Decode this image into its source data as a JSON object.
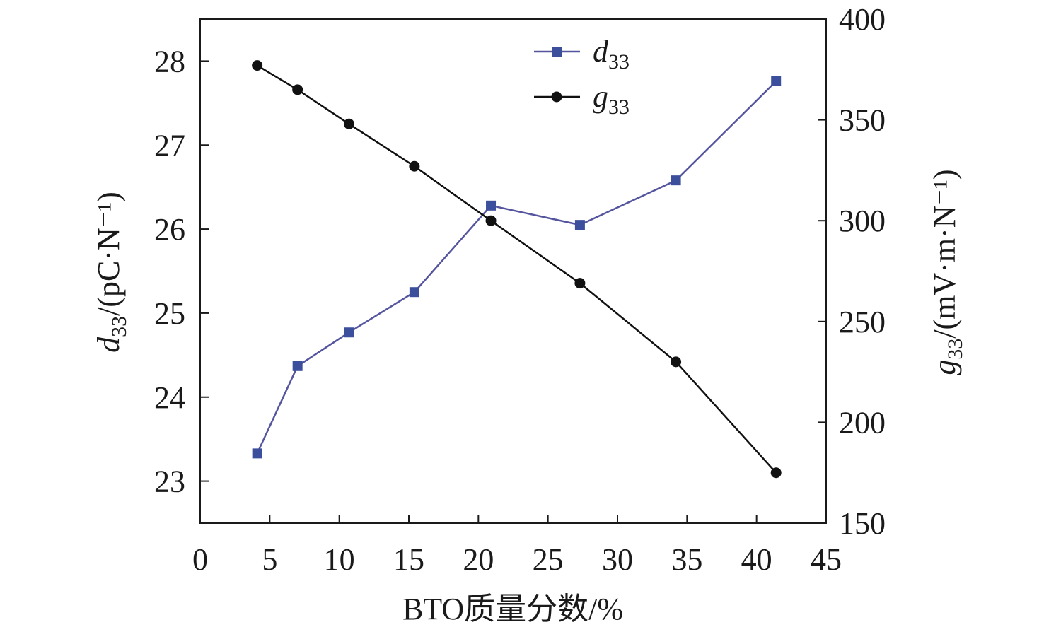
{
  "chart_data": {
    "type": "line",
    "xlabel": "BTO质量分数/%",
    "ylabel_left": "d33/(pC·N⁻¹)",
    "ylabel_right": "g33/(mV·m·N⁻¹)",
    "xlim": [
      0,
      45
    ],
    "ylim_left": [
      22.5,
      28.5
    ],
    "ylim_right": [
      150,
      400
    ],
    "xticks": [
      0,
      5,
      10,
      15,
      20,
      25,
      30,
      35,
      40,
      45
    ],
    "yticks_left": [
      23,
      24,
      25,
      26,
      27,
      28
    ],
    "yticks_right": [
      150,
      200,
      250,
      300,
      350,
      400
    ],
    "grid": false,
    "legend_position": "top-center",
    "x": [
      4.1,
      7.0,
      10.7,
      15.4,
      20.9,
      27.3,
      34.2,
      41.4
    ],
    "series": [
      {
        "name": "d33",
        "axis": "left",
        "marker": "square",
        "line_color": "#55559f",
        "marker_color": "#3b4f9c",
        "values": [
          23.33,
          24.37,
          24.77,
          25.25,
          26.28,
          26.05,
          26.58,
          27.76
        ]
      },
      {
        "name": "g33",
        "axis": "right",
        "marker": "circle",
        "line_color": "#111111",
        "marker_color": "#111111",
        "values": [
          377,
          365,
          348,
          327,
          300,
          269,
          230,
          175
        ]
      }
    ]
  }
}
